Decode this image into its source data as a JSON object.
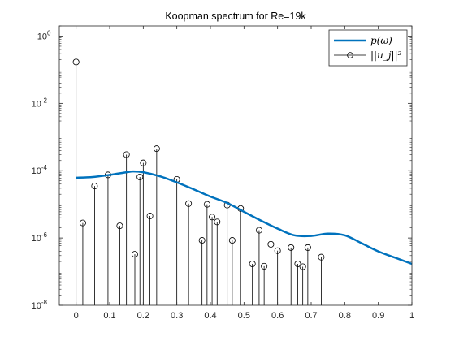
{
  "chart_data": {
    "type": "line",
    "title": "Koopman spectrum for Re=19k",
    "xlabel": "",
    "ylabel": "",
    "xlim": [
      -0.05,
      1
    ],
    "ylim": [
      1e-08,
      2
    ],
    "y_scale": "log",
    "grid": false,
    "legend_position": "top-right",
    "x_ticks": [
      0,
      0.1,
      0.2,
      0.3,
      0.4,
      0.5,
      0.6,
      0.7,
      0.8,
      0.9,
      1
    ],
    "x_tick_labels": [
      "0",
      "0.1",
      "0.2",
      "0.3",
      "0.4",
      "0.5",
      "0.6",
      "0.7",
      "0.8",
      "0.9",
      "1"
    ],
    "y_ticks": [
      1e-08,
      1e-06,
      0.0001,
      0.01,
      1
    ],
    "y_tick_labels": [
      {
        "base": "10",
        "exp": "-8"
      },
      {
        "base": "10",
        "exp": "-6"
      },
      {
        "base": "10",
        "exp": "-4"
      },
      {
        "base": "10",
        "exp": "-2"
      },
      {
        "base": "10",
        "exp": "0"
      }
    ],
    "series": [
      {
        "name": "p(ω)",
        "style": "line",
        "color": "#0072BD",
        "x": [
          0,
          0.05,
          0.1,
          0.15,
          0.17,
          0.2,
          0.25,
          0.3,
          0.35,
          0.4,
          0.45,
          0.5,
          0.55,
          0.6,
          0.65,
          0.7,
          0.75,
          0.8,
          0.85,
          0.9,
          0.95,
          1
        ],
        "y": [
          6.2e-05,
          6.5e-05,
          7.5e-05,
          9e-05,
          9.5e-05,
          9e-05,
          6.8e-05,
          4.5e-05,
          2.8e-05,
          1.7e-05,
          1.1e-05,
          6e-06,
          3.3e-06,
          1.9e-06,
          1.2e-06,
          1.15e-06,
          1.35e-06,
          1.2e-06,
          7e-07,
          4e-07,
          2.6e-07,
          1.7e-07
        ]
      },
      {
        "name": "||u_j||²",
        "style": "stem",
        "color": "#000000",
        "x": [
          0,
          0.02,
          0.055,
          0.095,
          0.13,
          0.15,
          0.175,
          0.19,
          0.2,
          0.22,
          0.24,
          0.3,
          0.335,
          0.375,
          0.39,
          0.405,
          0.42,
          0.45,
          0.465,
          0.49,
          0.525,
          0.545,
          0.56,
          0.58,
          0.6,
          0.64,
          0.66,
          0.675,
          0.69,
          0.73
        ],
        "y": [
          0.17,
          2.8e-06,
          3.5e-05,
          7.5e-05,
          2.3e-06,
          0.0003,
          3.3e-07,
          6.5e-05,
          0.00017,
          4.5e-06,
          0.00045,
          5.5e-05,
          1.05e-05,
          8.5e-07,
          1e-05,
          4.2e-06,
          3e-06,
          9.5e-06,
          8.5e-07,
          7.5e-06,
          1.7e-07,
          1.7e-06,
          1.45e-07,
          6.5e-07,
          4.2e-07,
          5.2e-07,
          1.7e-07,
          1.4e-07,
          5.2e-07,
          2.7e-07
        ]
      }
    ]
  }
}
